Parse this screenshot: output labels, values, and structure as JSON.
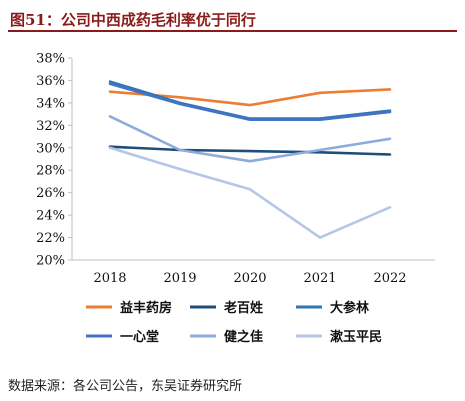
{
  "header": {
    "title": "图51：公司中西成药毛利率优于同行"
  },
  "footer": {
    "source": "数据来源：各公司公告，东吴证券研究所"
  },
  "chart_data": {
    "type": "line",
    "title": "",
    "xlabel": "",
    "ylabel": "",
    "x": [
      "2018",
      "2019",
      "2020",
      "2021",
      "2022"
    ],
    "ylim": [
      20,
      38
    ],
    "yticks": [
      20,
      22,
      24,
      26,
      28,
      30,
      32,
      34,
      36,
      38
    ],
    "ytick_labels": [
      "20%",
      "22%",
      "24%",
      "26%",
      "28%",
      "30%",
      "32%",
      "34%",
      "36%",
      "38%"
    ],
    "grid": false,
    "legend_position": "bottom",
    "series": [
      {
        "name": "益丰药房",
        "color": "#ed7d31",
        "values": [
          35.0,
          34.5,
          33.8,
          34.9,
          35.2
        ]
      },
      {
        "name": "老百姓",
        "color": "#1f4e79",
        "values": [
          30.1,
          29.8,
          29.7,
          29.6,
          29.4
        ]
      },
      {
        "name": "大参林",
        "color": "#2e75b6",
        "values": [
          35.9,
          34.0,
          32.6,
          32.6,
          33.3
        ]
      },
      {
        "name": "一心堂",
        "color": "#4472c4",
        "values": [
          35.7,
          33.9,
          32.5,
          32.5,
          33.2
        ]
      },
      {
        "name": "健之佳",
        "color": "#8faadc",
        "values": [
          32.8,
          29.8,
          28.8,
          29.8,
          30.8
        ]
      },
      {
        "name": "漱玉平民",
        "color": "#b4c7e7",
        "values": [
          30.0,
          28.1,
          26.3,
          22.0,
          24.7
        ]
      }
    ]
  }
}
